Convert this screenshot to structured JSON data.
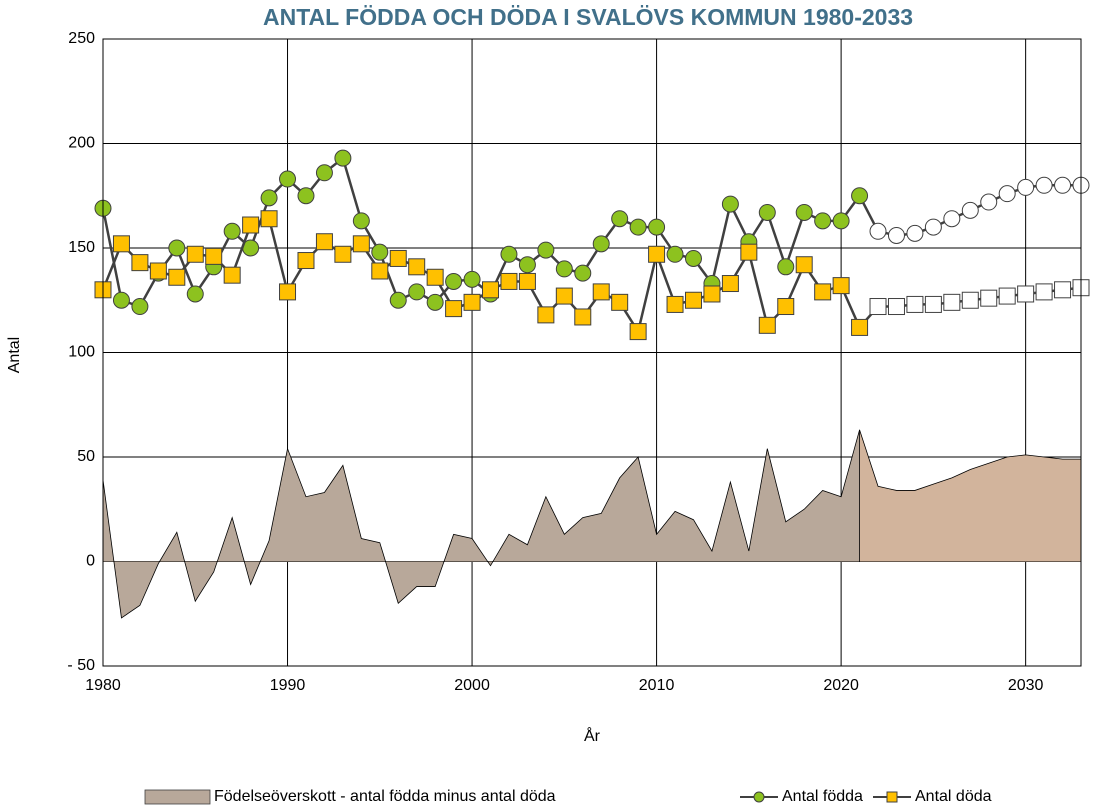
{
  "chart_data": {
    "type": "line",
    "title": "ANTAL FÖDDA OCH DÖDA I SVALÖVS KOMMUN 1980-2033",
    "xlabel": "År",
    "ylabel": "Antal",
    "x": [
      1980,
      1981,
      1982,
      1983,
      1984,
      1985,
      1986,
      1987,
      1988,
      1989,
      1990,
      1991,
      1992,
      1993,
      1994,
      1995,
      1996,
      1997,
      1998,
      1999,
      2000,
      2001,
      2002,
      2003,
      2004,
      2005,
      2006,
      2007,
      2008,
      2009,
      2010,
      2011,
      2012,
      2013,
      2014,
      2015,
      2016,
      2017,
      2018,
      2019,
      2020,
      2021,
      2022,
      2023,
      2024,
      2025,
      2026,
      2027,
      2028,
      2029,
      2030,
      2031,
      2032,
      2033
    ],
    "forecast_start": 2022,
    "series": [
      {
        "name": "Födelseöverskott - antal födda minus antal döda",
        "kind": "area",
        "color": "#b8a89a",
        "forecast_color": "#d2b49c",
        "values": [
          39,
          -27,
          -21,
          -1,
          14,
          -19,
          -5,
          21,
          -11,
          10,
          54,
          31,
          33,
          46,
          11,
          9,
          -20,
          -12,
          -12,
          13,
          11,
          -2,
          13,
          8,
          31,
          13,
          21,
          23,
          40,
          50,
          13,
          24,
          20,
          5,
          38,
          5,
          54,
          19,
          25,
          34,
          31,
          63,
          36,
          34,
          34,
          37,
          40,
          44,
          47,
          50,
          51,
          50,
          49,
          49
        ]
      },
      {
        "name": "Antal födda",
        "kind": "line",
        "marker": "circle",
        "color": "#8dc21f",
        "values": [
          169,
          125,
          122,
          138,
          150,
          128,
          141,
          158,
          150,
          174,
          183,
          175,
          186,
          193,
          163,
          148,
          125,
          129,
          124,
          134,
          135,
          128,
          147,
          142,
          149,
          140,
          138,
          152,
          164,
          160,
          160,
          147,
          145,
          133,
          171,
          153,
          167,
          141,
          167,
          163,
          163,
          175,
          158,
          156,
          157,
          160,
          164,
          168,
          172,
          176,
          179,
          180,
          180,
          180
        ]
      },
      {
        "name": "Antal döda",
        "kind": "line",
        "marker": "square",
        "color": "#ffc000",
        "values": [
          130,
          152,
          143,
          139,
          136,
          147,
          146,
          137,
          161,
          164,
          129,
          144,
          153,
          147,
          152,
          139,
          145,
          141,
          136,
          121,
          124,
          130,
          134,
          134,
          118,
          127,
          117,
          129,
          124,
          110,
          147,
          123,
          125,
          128,
          133,
          148,
          113,
          122,
          142,
          129,
          132,
          112,
          122,
          122,
          123,
          123,
          124,
          125,
          126,
          127,
          128,
          129,
          130,
          131
        ]
      }
    ],
    "xlim": [
      1980,
      2033
    ],
    "xticks": [
      1980,
      1990,
      2000,
      2010,
      2020,
      2030
    ],
    "ylim": [
      -50,
      250
    ],
    "yticks": [
      {
        "value": -50,
        "label": "- 50"
      },
      0,
      50,
      100,
      150,
      200,
      250
    ],
    "grid": true,
    "legend": "bottom"
  }
}
